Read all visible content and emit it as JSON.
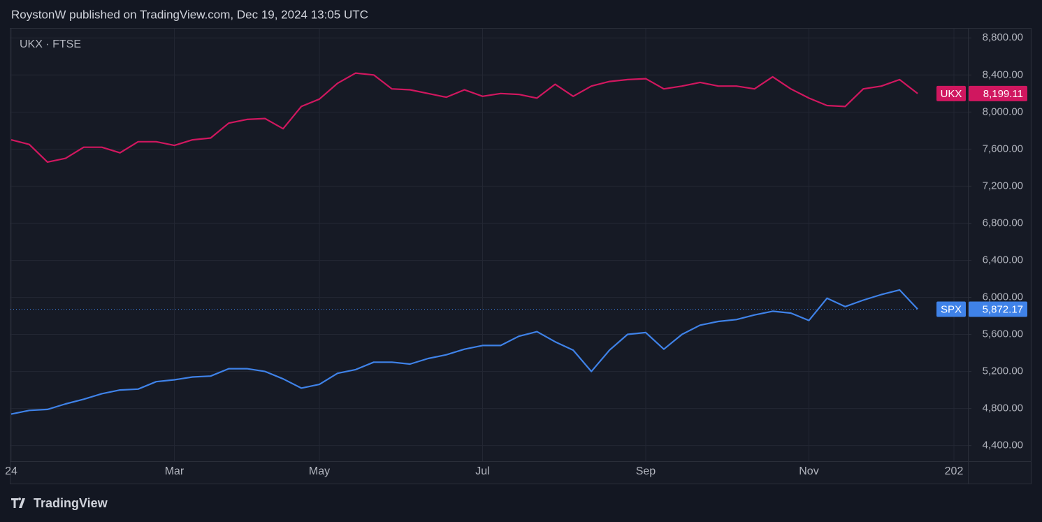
{
  "header": {
    "text": "RoystonW published on TradingView.com, Dec 19, 2024 13:05 UTC"
  },
  "footer": {
    "brand": "TradingView"
  },
  "chart_data": {
    "type": "line",
    "title": "UKX · FTSE",
    "categories": [
      "24",
      null,
      null,
      null,
      null,
      null,
      null,
      null,
      null,
      "Mar",
      null,
      null,
      null,
      null,
      null,
      null,
      null,
      "May",
      null,
      null,
      null,
      null,
      null,
      null,
      null,
      null,
      "Jul",
      null,
      null,
      null,
      null,
      null,
      null,
      null,
      null,
      "Sep",
      null,
      null,
      null,
      null,
      null,
      null,
      null,
      null,
      "Nov",
      null,
      null,
      null,
      null,
      null,
      null,
      null,
      "202"
    ],
    "series": [
      {
        "name": "UKX",
        "color": "#d0175f",
        "price_line": false,
        "price_label": "8,199.11",
        "values": [
          7700,
          7650,
          7460,
          7500,
          7620,
          7620,
          7560,
          7680,
          7680,
          7640,
          7700,
          7720,
          7880,
          7920,
          7930,
          7820,
          8060,
          8140,
          8310,
          8420,
          8400,
          8250,
          8240,
          8200,
          8160,
          8240,
          8170,
          8200,
          8190,
          8150,
          8300,
          8170,
          8280,
          8330,
          8350,
          8360,
          8250,
          8280,
          8320,
          8280,
          8280,
          8250,
          8380,
          8250,
          8150,
          8070,
          8060,
          8250,
          8280,
          8350,
          8199.11,
          null,
          null
        ]
      },
      {
        "name": "SPX",
        "color": "#3f82e8",
        "price_line": true,
        "price_label": "5,872.17",
        "values": [
          4740,
          4780,
          4790,
          4850,
          4900,
          4960,
          5000,
          5010,
          5090,
          5110,
          5140,
          5150,
          5230,
          5230,
          5200,
          5120,
          5020,
          5060,
          5180,
          5220,
          5300,
          5300,
          5280,
          5340,
          5380,
          5440,
          5480,
          5480,
          5580,
          5630,
          5520,
          5430,
          5200,
          5430,
          5600,
          5620,
          5440,
          5600,
          5700,
          5740,
          5760,
          5810,
          5850,
          5830,
          5750,
          5990,
          5900,
          5970,
          6030,
          6080,
          5872.17,
          null,
          null
        ]
      }
    ],
    "ylim": [
      3990,
      8900
    ],
    "yticks": [
      {
        "value": 4400,
        "label": "4,400.00"
      },
      {
        "value": 4800,
        "label": "4,800.00"
      },
      {
        "value": 5200,
        "label": "5,200.00"
      },
      {
        "value": 5600,
        "label": "5,600.00"
      },
      {
        "value": 6000,
        "label": "6,000.00"
      },
      {
        "value": 6400,
        "label": "6,400.00"
      },
      {
        "value": 6800,
        "label": "6,800.00"
      },
      {
        "value": 7200,
        "label": "7,200.00"
      },
      {
        "value": 7600,
        "label": "7,600.00"
      },
      {
        "value": 8000,
        "label": "8,000.00"
      },
      {
        "value": 8400,
        "label": "8,400.00"
      },
      {
        "value": 8800,
        "label": "8,800.00"
      }
    ],
    "grid": true
  }
}
